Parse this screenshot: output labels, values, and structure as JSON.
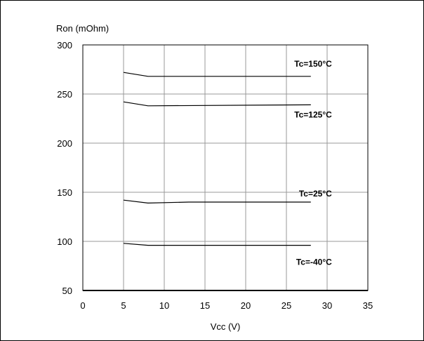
{
  "chart_data": {
    "type": "line",
    "title": "",
    "xlabel": "Vcc (V)",
    "ylabel": "Ron (mOhm)",
    "xlim": [
      0,
      35
    ],
    "ylim": [
      50,
      300
    ],
    "xticks": [
      "0",
      "5",
      "10",
      "15",
      "20",
      "25",
      "30",
      "35"
    ],
    "yticks": [
      "50",
      "100",
      "150",
      "200",
      "250",
      "300"
    ],
    "grid": true,
    "series": [
      {
        "name": "Tc=150°C",
        "x": [
          5,
          8,
          28
        ],
        "y": [
          272,
          268,
          268
        ]
      },
      {
        "name": "Tc=125°C",
        "x": [
          5,
          8,
          28
        ],
        "y": [
          242,
          238,
          239
        ]
      },
      {
        "name": "Tc=25°C",
        "x": [
          5,
          8,
          13,
          28
        ],
        "y": [
          142,
          139,
          140,
          140
        ]
      },
      {
        "name": "Tc=-40°C",
        "x": [
          5,
          8,
          28
        ],
        "y": [
          98,
          96,
          96
        ]
      }
    ],
    "colors": {
      "line": "#000000",
      "grid": "#999999"
    }
  }
}
